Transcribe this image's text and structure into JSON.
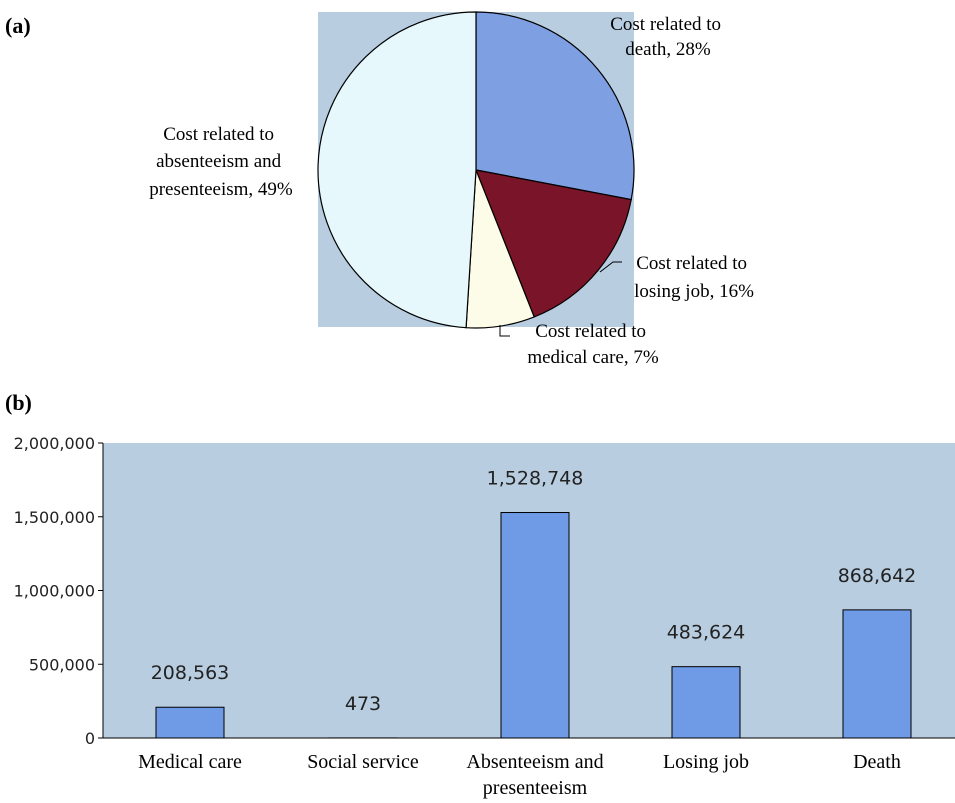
{
  "panels": {
    "a": "(a)",
    "b": "(b)"
  },
  "chart_data": [
    {
      "type": "pie",
      "slices": [
        {
          "label": [
            "Cost related to",
            "death, 28%"
          ],
          "value": 28,
          "color": "#7f9fe3"
        },
        {
          "label": [
            "Cost related to",
            "losing job, 16%"
          ],
          "value": 16,
          "color": "#7a1428"
        },
        {
          "label": [
            "Cost related to",
            "medical care, 7%"
          ],
          "value": 7,
          "color": "#fdfce8"
        },
        {
          "label": [
            "Cost related to",
            "absenteeism and",
            "presenteeism, 49%"
          ],
          "value": 49,
          "color": "#e6f8fc"
        }
      ],
      "background": "#b8cde0"
    },
    {
      "type": "bar",
      "categories": [
        [
          "Medical care"
        ],
        [
          "Social service"
        ],
        [
          "Absenteeism and",
          "presenteeism"
        ],
        [
          "Losing job"
        ],
        [
          "Death"
        ]
      ],
      "values": [
        208563,
        473,
        1528748,
        483624,
        868642
      ],
      "value_labels": [
        "208,563",
        "473",
        "1,528,748",
        "483,624",
        "868,642"
      ],
      "ylim": [
        0,
        2000000
      ],
      "yticks": [
        0,
        500000,
        1000000,
        1500000,
        2000000
      ],
      "ytick_labels": [
        "0",
        "500,000",
        "1,000,000",
        "1,500,000",
        "2,000,000"
      ],
      "bar_color": "#6e9ae6",
      "plot_background": "#b8cde0"
    }
  ]
}
